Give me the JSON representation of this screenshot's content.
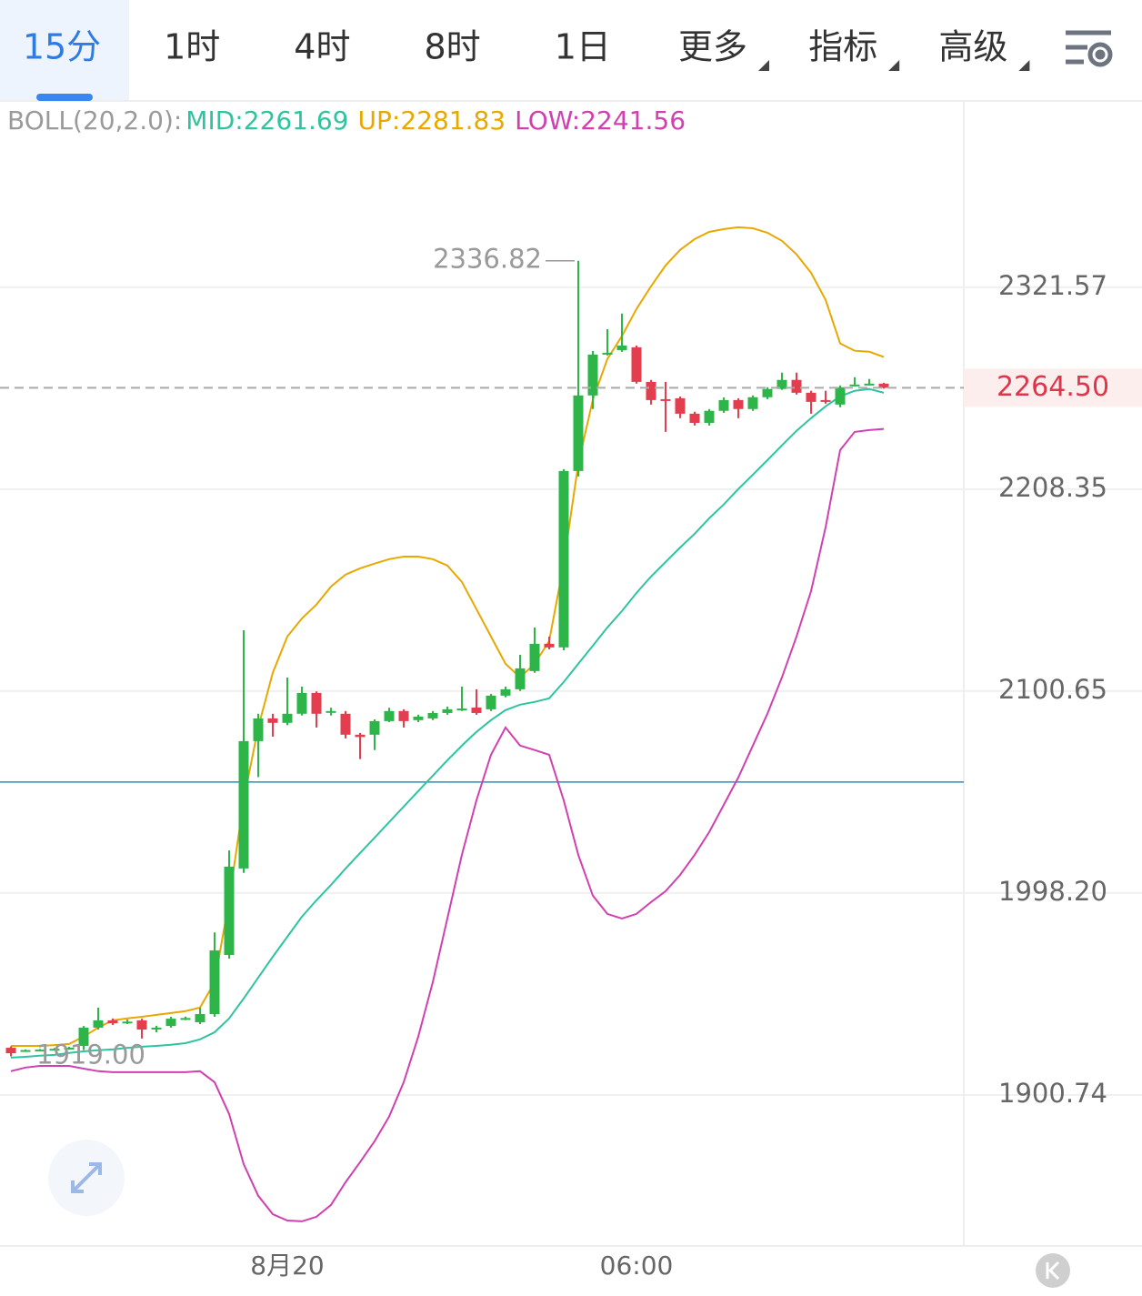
{
  "tabs": [
    {
      "label": "15分",
      "active": true
    },
    {
      "label": "1时"
    },
    {
      "label": "4时"
    },
    {
      "label": "8时"
    },
    {
      "label": "1日"
    },
    {
      "label": "更多",
      "dropdown": true
    },
    {
      "label": "指标",
      "dropdown": true
    },
    {
      "label": "高级",
      "dropdown": true
    }
  ],
  "chart_data": {
    "type": "candlestick",
    "indicator_label": "BOLL(20,2.0):",
    "categories": [
      null,
      null,
      null,
      null,
      null,
      null,
      null,
      null,
      null,
      null,
      null,
      null,
      null,
      null,
      null,
      null,
      null,
      null,
      null,
      "8月20",
      null,
      null,
      null,
      null,
      null,
      null,
      null,
      null,
      null,
      null,
      null,
      null,
      null,
      null,
      null,
      null,
      null,
      null,
      null,
      null,
      null,
      null,
      null,
      "06:00",
      null,
      null,
      null,
      null,
      null,
      null,
      null,
      null,
      null,
      null,
      null,
      null,
      null,
      null,
      null,
      null,
      null
    ],
    "open": [
      1923.1,
      1921.8,
      1922.0,
      1922.2,
      1922.6,
      1924.0,
      1932.7,
      1936.2,
      1934.8,
      1936.2,
      1932.2,
      1933.5,
      1937.0,
      1935.3,
      1939.2,
      1967.8,
      2010.4,
      2074.8,
      2086.5,
      2084.2,
      2088.9,
      2099.7,
      2089.8,
      2088.9,
      2078.1,
      2078.1,
      2085.1,
      2090.3,
      2085.6,
      2086.5,
      2089.3,
      2090.8,
      2092.1,
      2091.2,
      2098.3,
      2101.6,
      2111.1,
      2125.4,
      2123.5,
      2218.3,
      2260.2,
      2283.7,
      2285.7,
      2287.3,
      2267.8,
      2258.1,
      2258.6,
      2250.0,
      2244.9,
      2251.6,
      2257.6,
      2252.6,
      2259.2,
      2263.8,
      2268.9,
      2261.7,
      2257.6,
      2255.1,
      2265.8,
      2266.3,
      2266.8
    ],
    "high": [
      1923.8,
      1922.3,
      1922.5,
      1923.0,
      1923.6,
      1933.5,
      1942.3,
      1937.1,
      1936.6,
      1937.0,
      1933.6,
      1937.9,
      1938.0,
      1942.2,
      1978.8,
      2019.4,
      2132.5,
      2088.9,
      2088.9,
      2107.7,
      2103.0,
      2100.5,
      2092.0,
      2090.3,
      2079.0,
      2086.0,
      2092.0,
      2091.2,
      2088.4,
      2090.3,
      2092.6,
      2103.0,
      2101.6,
      2099.2,
      2103.0,
      2119.6,
      2134.0,
      2129.2,
      2219.3,
      2336.82,
      2285.2,
      2297.6,
      2306.5,
      2288.3,
      2268.9,
      2267.8,
      2259.6,
      2251.1,
      2252.6,
      2259.1,
      2258.6,
      2260.2,
      2264.8,
      2273.0,
      2273.0,
      2262.8,
      2262.8,
      2265.8,
      2270.4,
      2269.4,
      2267.3
    ],
    "low": [
      1919.0,
      1921.4,
      1921.6,
      1921.8,
      1922.2,
      1922.0,
      1931.8,
      1934.0,
      1934.4,
      1927.5,
      1930.5,
      1932.7,
      1936.3,
      1934.4,
      1937.9,
      1966.0,
      2008.2,
      2056.4,
      2077.1,
      2083.0,
      2088.0,
      2081.8,
      2088.0,
      2076.2,
      2065.6,
      2070.2,
      2084.6,
      2081.8,
      2084.6,
      2085.6,
      2088.4,
      2090.3,
      2088.4,
      2090.3,
      2097.4,
      2100.7,
      2110.2,
      2122.5,
      2122.0,
      2215.3,
      2252.6,
      2282.7,
      2284.7,
      2266.8,
      2255.1,
      2239.9,
      2247.5,
      2243.4,
      2243.4,
      2250.5,
      2247.5,
      2251.6,
      2258.1,
      2263.3,
      2260.7,
      2250.0,
      2255.6,
      2253.6,
      2265.3,
      2265.8,
      2264.0
    ],
    "close": [
      1920.5,
      1922.0,
      1922.2,
      1922.6,
      1923.1,
      1932.7,
      1936.2,
      1934.8,
      1935.6,
      1931.8,
      1932.7,
      1937.0,
      1937.3,
      1939.2,
      1970.0,
      2011.3,
      2074.8,
      2086.5,
      2084.2,
      2088.9,
      2099.7,
      2088.9,
      2090.3,
      2078.1,
      2076.9,
      2085.1,
      2090.3,
      2085.1,
      2087.4,
      2089.3,
      2091.2,
      2091.6,
      2089.3,
      2098.3,
      2101.6,
      2112.5,
      2125.4,
      2123.5,
      2218.3,
      2260.2,
      2283.2,
      2284.2,
      2288.3,
      2267.8,
      2257.6,
      2257.6,
      2250.0,
      2244.9,
      2251.6,
      2257.6,
      2252.6,
      2259.2,
      2263.8,
      2268.9,
      2261.7,
      2256.6,
      2256.6,
      2264.8,
      2266.3,
      2266.8,
      2264.5
    ],
    "up_color": "#2db54a",
    "down_color": "#e33d4e",
    "series": [
      {
        "name": "MID:2261.69",
        "color": "#2ec4a0",
        "values": [
          1918.4,
          1918.8,
          1919.3,
          1919.7,
          1920.6,
          1921.4,
          1921.9,
          1922.3,
          1923.1,
          1923.6,
          1924.0,
          1924.5,
          1925.3,
          1927.1,
          1930.5,
          1937.1,
          1946.7,
          1956.8,
          1966.9,
          1976.7,
          1986.5,
          1994.6,
          2002.2,
          2010.3,
          2018.1,
          2025.8,
          2033.6,
          2041.4,
          2049.3,
          2057.1,
          2065.0,
          2072.5,
          2079.5,
          2085.6,
          2090.8,
          2093.6,
          2095.0,
          2096.9,
          2105.4,
          2114.9,
          2124.4,
          2134.0,
          2142.7,
          2152.3,
          2161.1,
          2168.9,
          2176.7,
          2184.1,
          2192.5,
          2200.0,
          2208.4,
          2216.3,
          2224.3,
          2232.4,
          2240.5,
          2247.5,
          2254.1,
          2259.7,
          2262.8,
          2263.8,
          2261.69
        ]
      },
      {
        "name": "UP:2281.83",
        "color": "#e8a800",
        "values": [
          1924.0,
          1924.0,
          1924.0,
          1924.4,
          1924.9,
          1928.4,
          1932.7,
          1936.2,
          1937.1,
          1937.9,
          1938.8,
          1939.7,
          1940.6,
          1942.3,
          1954.6,
          1994.6,
          2044.6,
          2081.8,
          2110.2,
          2129.2,
          2138.8,
          2146.1,
          2155.7,
          2162.1,
          2165.5,
          2168.0,
          2170.4,
          2171.8,
          2171.8,
          2170.4,
          2167.0,
          2158.2,
          2143.7,
          2129.2,
          2114.9,
          2107.8,
          2114.9,
          2126.8,
          2168.0,
          2222.3,
          2257.7,
          2280.7,
          2293.6,
          2309.1,
          2322.1,
          2334.1,
          2343.1,
          2349.4,
          2353.6,
          2355.2,
          2356.3,
          2355.7,
          2353.1,
          2348.4,
          2340.5,
          2329.9,
          2314.3,
          2289.5,
          2285.3,
          2284.8,
          2281.83
        ]
      },
      {
        "name": "LOW:2241.56",
        "color": "#d040b0",
        "values": [
          1912.0,
          1913.7,
          1914.5,
          1914.5,
          1914.5,
          1913.2,
          1912.0,
          1911.5,
          1911.5,
          1911.5,
          1911.5,
          1911.5,
          1911.5,
          1912.0,
          1906.8,
          1891.8,
          1868.5,
          1853.9,
          1845.5,
          1842.6,
          1842.2,
          1844.3,
          1849.7,
          1860.1,
          1869.4,
          1879.1,
          1890.6,
          1906.8,
          1928.4,
          1954.6,
          1985.6,
          2017.2,
          2044.6,
          2067.8,
          2081.8,
          2072.5,
          2070.2,
          2067.8,
          2044.6,
          2017.2,
          1996.9,
          1987.9,
          1985.6,
          1987.9,
          1993.7,
          1999.1,
          2007.2,
          2017.2,
          2028.6,
          2042.3,
          2056.2,
          2072.5,
          2088.9,
          2107.8,
          2129.2,
          2153.3,
          2187.6,
          2229.8,
          2239.9,
          2240.9,
          2241.56
        ]
      }
    ],
    "ylim": [
      1831.0,
      2430.6
    ],
    "log_scale": true,
    "grid": true,
    "yticks": [
      2321.57,
      2208.35,
      2100.65,
      {
        "value": 1998.2,
        "label": "1998.20"
      },
      1900.74
    ],
    "high_label": "2336.82",
    "low_label": "1919.00",
    "last_price_label": "2264.50",
    "reference_line": {
      "value": 2053.9,
      "color": "#2a8fbd"
    }
  }
}
